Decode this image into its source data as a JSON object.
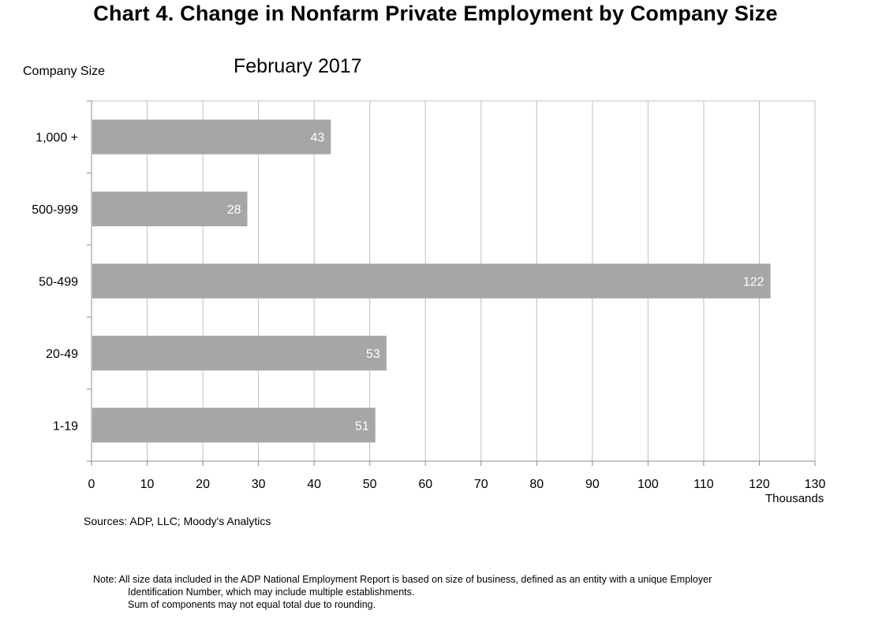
{
  "title": "Chart 4. Change in Nonfarm Private Employment by Company Size",
  "subtitle": "February 2017",
  "y_axis_title": "Company Size",
  "unit_label": "Thousands",
  "source": "Sources: ADP, LLC; Moody's Analytics",
  "note": {
    "line1": "Note:  All size data included in the ADP National Employment Report is based on size of business, defined as an entity with a unique Employer",
    "line2": "Identification Number, which may include multiple establishments.",
    "line3": "Sum of components may not equal total due to rounding."
  },
  "colors": {
    "bar_fill": "#a6a6a6",
    "grid": "#bfbfbf",
    "axis": "#8c8c8c",
    "data_label": "#ffffff"
  },
  "chart_data": {
    "type": "bar",
    "orientation": "horizontal",
    "categories": [
      "1,000 +",
      "500-999",
      "50-499",
      "20-49",
      "1-19"
    ],
    "values": [
      43,
      28,
      122,
      53,
      51
    ],
    "data_labels": [
      "43",
      "28",
      "122",
      "53",
      "51"
    ],
    "xlim": [
      0,
      130
    ],
    "x_ticks": [
      0,
      10,
      20,
      30,
      40,
      50,
      60,
      70,
      80,
      90,
      100,
      110,
      120,
      130
    ],
    "grid": true,
    "legend": "none"
  }
}
